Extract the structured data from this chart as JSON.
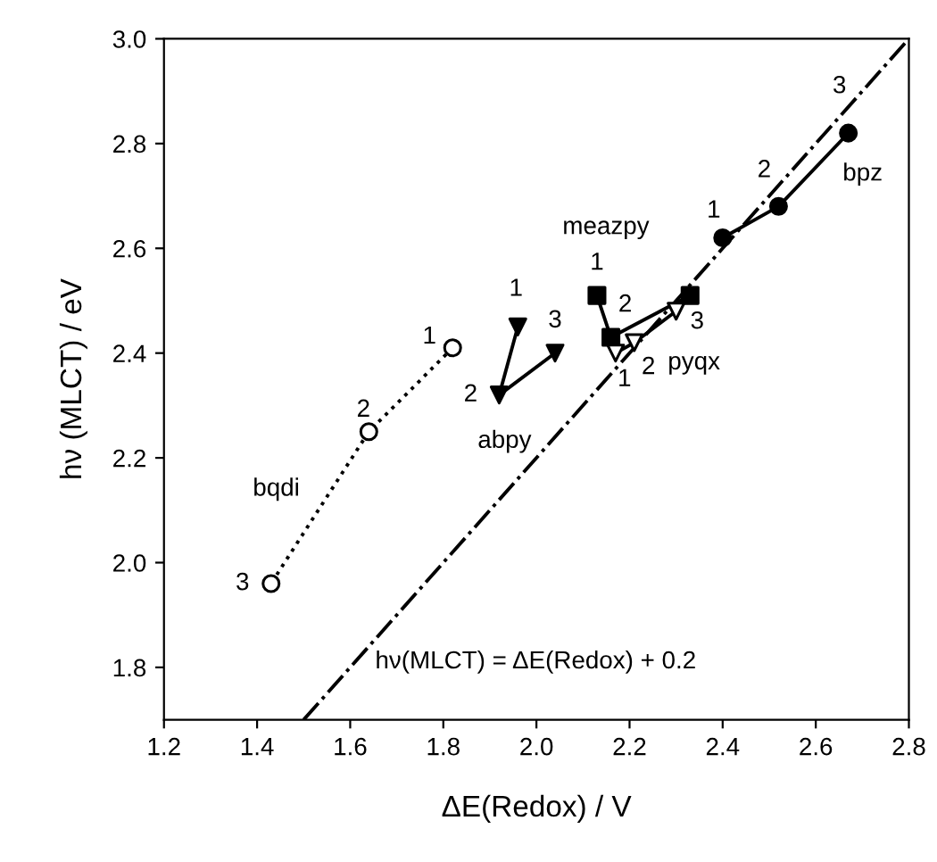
{
  "chart_data": {
    "type": "line",
    "xlabel": "ΔE(Redox) / V",
    "ylabel": "hν (MLCT) / eV",
    "xlim": [
      1.2,
      2.8
    ],
    "ylim": [
      1.7,
      3.0
    ],
    "xticks": [
      1.2,
      1.4,
      1.6,
      1.8,
      {
        "value": 2.0,
        "label": "2.0"
      },
      2.2,
      2.4,
      2.6,
      2.8
    ],
    "yticks": [
      1.8,
      {
        "value": 2.0,
        "label": "2.0"
      },
      2.2,
      2.4,
      2.6,
      2.8,
      {
        "value": 3.0,
        "label": "3.0"
      }
    ],
    "grid": false,
    "legend": false,
    "series": [
      {
        "color": "#000000",
        "colors": [
          "#000000",
          "#000000",
          "#000000"
        ],
        "marker": "circle",
        "line_style": "solid",
        "x": [
          2.4,
          2.52,
          2.67
        ],
        "values": [
          2.62,
          2.68,
          2.82
        ]
      },
      {
        "color": "#000000",
        "colors": [
          "#000000",
          "#000000",
          "#000000"
        ],
        "marker": "square",
        "line_style": "solid",
        "x": [
          2.13,
          2.16,
          2.33
        ],
        "values": [
          2.51,
          2.43,
          2.51
        ]
      },
      {
        "color": "#000000",
        "colors": [
          "#ffffff",
          "#ffffff",
          "#ffffff"
        ],
        "marker": "triangle_down",
        "line_style": "solid",
        "x": [
          2.17,
          2.21,
          2.3
        ],
        "values": [
          2.4,
          2.42,
          2.48
        ]
      },
      {
        "color": "#000000",
        "colors": [
          "#000000",
          "#000000",
          "#000000"
        ],
        "marker": "triangle_down",
        "line_style": "solid",
        "x": [
          1.96,
          1.92,
          2.04
        ],
        "values": [
          2.45,
          2.32,
          2.4
        ]
      },
      {
        "color": "#000000",
        "colors": [
          "#ffffff",
          "#ffffff",
          "#ffffff"
        ],
        "marker": "circle",
        "line_style": "dotted",
        "x": [
          1.82,
          1.64,
          1.43
        ],
        "values": [
          2.41,
          2.25,
          1.96
        ]
      },
      {
        "color": "#000000",
        "marker": "none",
        "line_style": "dashdot",
        "x": [
          1.5,
          2.8
        ],
        "values": [
          1.7,
          3.0
        ]
      }
    ],
    "annotations": [
      {
        "text": "1",
        "x": 2.4,
        "y": 2.62
      },
      {
        "text": "2",
        "x": 2.52,
        "y": 2.68
      },
      {
        "text": "3",
        "x": 2.67,
        "y": 2.82
      },
      {
        "text": "bpz",
        "x": 2.67,
        "y": 2.82
      },
      {
        "text": "meazpy",
        "x": 2.13,
        "y": 2.51
      },
      {
        "text": "1",
        "x": 2.13,
        "y": 2.51
      },
      {
        "text": "2",
        "x": 2.16,
        "y": 2.43
      },
      {
        "text": "3",
        "x": 2.33,
        "y": 2.51
      },
      {
        "text": "pyqx",
        "x": 2.3,
        "y": 2.48
      },
      {
        "text": "1",
        "x": 2.17,
        "y": 2.4
      },
      {
        "text": "2",
        "x": 2.21,
        "y": 2.42
      },
      {
        "text": "1",
        "x": 1.96,
        "y": 2.45
      },
      {
        "text": "2",
        "x": 1.92,
        "y": 2.32
      },
      {
        "text": "3",
        "x": 2.04,
        "y": 2.4
      },
      {
        "text": "abpy",
        "x": 1.92,
        "y": 2.32
      },
      {
        "text": "1",
        "x": 1.82,
        "y": 2.41
      },
      {
        "text": "2",
        "x": 1.64,
        "y": 2.25
      },
      {
        "text": "3",
        "x": 1.43,
        "y": 1.96
      },
      {
        "text": "bqdi",
        "x": 1.56,
        "y": 2.14
      },
      {
        "text": "hν(MLCT) = ΔE(Redox) + 0.2",
        "x": 1.6,
        "y": 1.8
      }
    ]
  }
}
